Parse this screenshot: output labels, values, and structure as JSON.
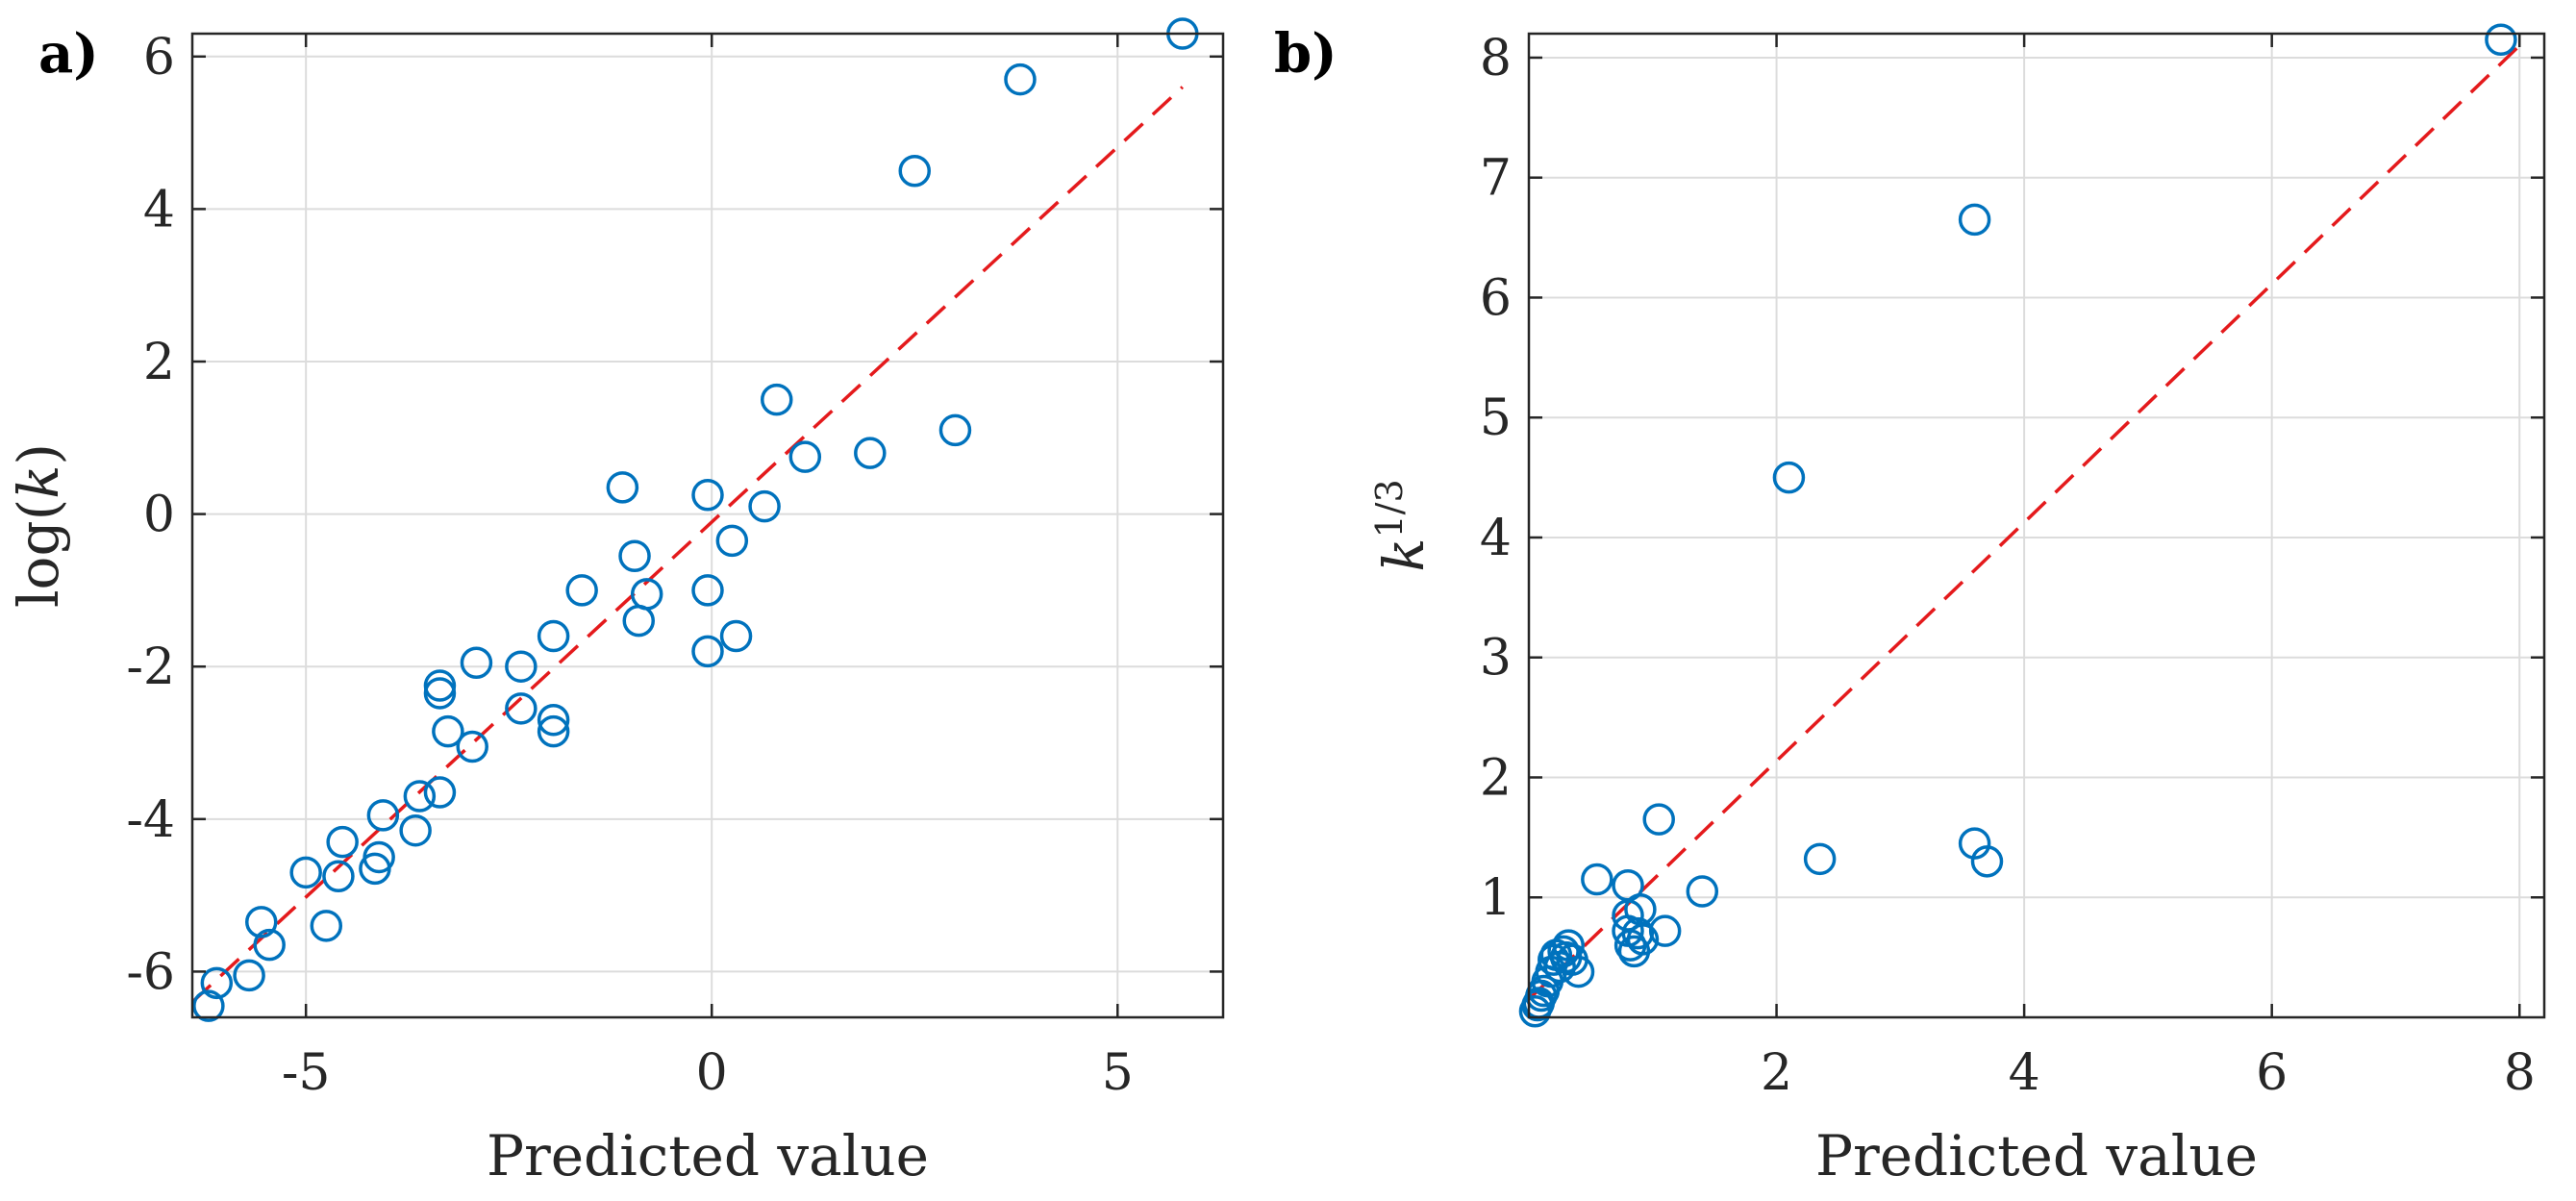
{
  "chart_data": [
    {
      "panel": "a)",
      "type": "scatter",
      "xlabel": "Predicted value",
      "ylabel": "log(k)",
      "ylabel_parts": {
        "pre": "log(",
        "var": "k",
        "post": ")"
      },
      "xlim": [
        -6.4,
        6.3
      ],
      "ylim": [
        -6.6,
        6.3
      ],
      "xticks": [
        -5,
        0,
        5
      ],
      "xtick_labels": [
        "-5",
        "0",
        "5"
      ],
      "yticks": [
        -6,
        -4,
        -2,
        0,
        2,
        4,
        6
      ],
      "ytick_labels": [
        "-6",
        "-4",
        "-2",
        "0",
        "2",
        "4",
        "6"
      ],
      "grid": true,
      "reference_line": {
        "from": [
          -6.4,
          -6.4
        ],
        "to": [
          5.8,
          5.6
        ],
        "color": "#e41a1c",
        "style": "dashed"
      },
      "marker_color": "#0072bd",
      "points": [
        [
          -6.2,
          -6.45
        ],
        [
          -6.1,
          -6.15
        ],
        [
          -5.7,
          -6.05
        ],
        [
          -5.55,
          -5.35
        ],
        [
          -5.45,
          -5.65
        ],
        [
          -5.0,
          -4.7
        ],
        [
          -4.75,
          -5.4
        ],
        [
          -4.6,
          -4.75
        ],
        [
          -4.55,
          -4.3
        ],
        [
          -4.15,
          -4.65
        ],
        [
          -4.1,
          -4.5
        ],
        [
          -4.05,
          -3.95
        ],
        [
          -3.65,
          -4.15
        ],
        [
          -3.6,
          -3.7
        ],
        [
          -3.35,
          -3.65
        ],
        [
          -3.35,
          -2.35
        ],
        [
          -3.35,
          -2.25
        ],
        [
          -3.25,
          -2.85
        ],
        [
          -2.95,
          -3.05
        ],
        [
          -2.9,
          -1.95
        ],
        [
          -2.35,
          -2.0
        ],
        [
          -2.35,
          -2.55
        ],
        [
          -1.95,
          -1.6
        ],
        [
          -1.95,
          -2.7
        ],
        [
          -1.95,
          -2.85
        ],
        [
          -1.6,
          -1.0
        ],
        [
          -1.1,
          0.35
        ],
        [
          -0.95,
          -0.55
        ],
        [
          -0.9,
          -1.4
        ],
        [
          -0.8,
          -1.05
        ],
        [
          -0.05,
          0.25
        ],
        [
          -0.05,
          -1.0
        ],
        [
          -0.05,
          -1.8
        ],
        [
          0.25,
          -0.35
        ],
        [
          0.3,
          -1.6
        ],
        [
          0.65,
          0.1
        ],
        [
          0.8,
          1.5
        ],
        [
          1.15,
          0.75
        ],
        [
          1.95,
          0.8
        ],
        [
          2.5,
          4.5
        ],
        [
          3.0,
          1.1
        ],
        [
          3.8,
          5.7
        ],
        [
          5.8,
          6.3
        ]
      ]
    },
    {
      "panel": "b)",
      "type": "scatter",
      "xlabel": "Predicted value",
      "ylabel": "k^(1/3)",
      "ylabel_parts": {
        "var": "k",
        "sup": "1/3"
      },
      "xlim": [
        0,
        8.2
      ],
      "ylim": [
        0,
        8.2
      ],
      "xticks": [
        2,
        4,
        6,
        8
      ],
      "xtick_labels": [
        "2",
        "4",
        "6",
        "8"
      ],
      "yticks": [
        1,
        2,
        3,
        4,
        5,
        6,
        7,
        8
      ],
      "ytick_labels": [
        "1",
        "2",
        "3",
        "4",
        "5",
        "6",
        "7",
        "8"
      ],
      "grid": true,
      "reference_line": {
        "from": [
          0,
          0.15
        ],
        "to": [
          8,
          8.1
        ],
        "color": "#e41a1c",
        "style": "dashed"
      },
      "marker_color": "#0072bd",
      "points": [
        [
          0.05,
          0.05
        ],
        [
          0.07,
          0.1
        ],
        [
          0.08,
          0.12
        ],
        [
          0.1,
          0.18
        ],
        [
          0.12,
          0.22
        ],
        [
          0.15,
          0.3
        ],
        [
          0.18,
          0.38
        ],
        [
          0.2,
          0.48
        ],
        [
          0.22,
          0.52
        ],
        [
          0.25,
          0.42
        ],
        [
          0.28,
          0.55
        ],
        [
          0.3,
          0.5
        ],
        [
          0.32,
          0.6
        ],
        [
          0.35,
          0.48
        ],
        [
          0.4,
          0.38
        ],
        [
          0.55,
          1.15
        ],
        [
          0.8,
          1.1
        ],
        [
          0.8,
          0.85
        ],
        [
          0.8,
          0.72
        ],
        [
          0.82,
          0.6
        ],
        [
          0.85,
          0.55
        ],
        [
          0.88,
          0.7
        ],
        [
          0.9,
          0.9
        ],
        [
          0.92,
          0.65
        ],
        [
          1.05,
          1.65
        ],
        [
          1.1,
          0.72
        ],
        [
          1.4,
          1.05
        ],
        [
          2.1,
          4.5
        ],
        [
          2.35,
          1.32
        ],
        [
          3.6,
          6.65
        ],
        [
          3.6,
          1.45
        ],
        [
          3.7,
          1.3
        ],
        [
          7.85,
          8.15
        ]
      ]
    }
  ]
}
